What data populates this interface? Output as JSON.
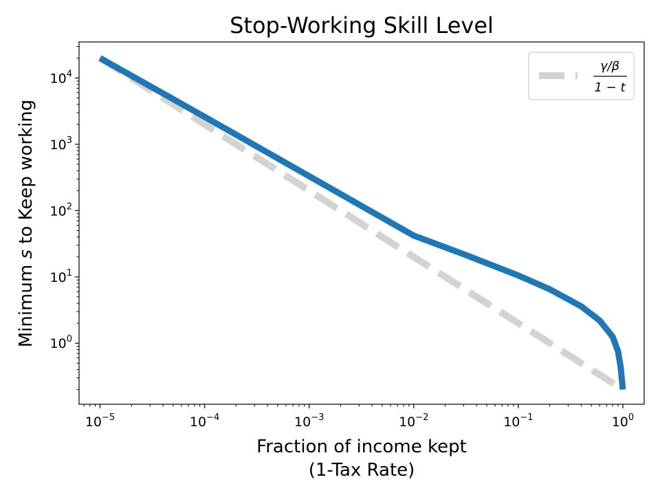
{
  "chart_data": {
    "type": "line",
    "title": "Stop-Working Skill Level",
    "xlabel_line1": "Fraction of income kept",
    "xlabel_line2": "(1-Tax Rate)",
    "ylabel_prefix": "Minimum ",
    "ylabel_var": "s",
    "ylabel_suffix": " to Keep working",
    "xscale": "log",
    "yscale": "log",
    "xlim": [
      6.3e-06,
      1.6
    ],
    "ylim": [
      0.12,
      35000
    ],
    "grid": false,
    "legend_placement": "top-right",
    "x_ticks": [
      {
        "value": 1e-05,
        "base": "10",
        "exp": "−5"
      },
      {
        "value": 0.0001,
        "base": "10",
        "exp": "−4"
      },
      {
        "value": 0.001,
        "base": "10",
        "exp": "−3"
      },
      {
        "value": 0.01,
        "base": "10",
        "exp": "−2"
      },
      {
        "value": 0.1,
        "base": "10",
        "exp": "−1"
      },
      {
        "value": 1,
        "base": "10",
        "exp": "0"
      }
    ],
    "y_ticks": [
      {
        "value": 1,
        "base": "10",
        "exp": "0"
      },
      {
        "value": 10,
        "base": "10",
        "exp": "1"
      },
      {
        "value": 100,
        "base": "10",
        "exp": "2"
      },
      {
        "value": 1000,
        "base": "10",
        "exp": "3"
      },
      {
        "value": 10000,
        "base": "10",
        "exp": "4"
      }
    ],
    "series": [
      {
        "name": "",
        "color": "#1f77b4",
        "style": "solid",
        "x": [
          1e-05,
          0.0001,
          0.001,
          0.01,
          0.03,
          0.1,
          0.2,
          0.4,
          0.6,
          0.8,
          0.9,
          0.95,
          1.0
        ],
        "y": [
          20000,
          2600,
          330,
          42,
          22,
          10.5,
          6.5,
          3.6,
          2.2,
          1.25,
          0.75,
          0.45,
          0.2
        ]
      },
      {
        "name": "γ/β over 1−t",
        "color": "#d3d3d3",
        "style": "dashed",
        "x": [
          1e-05,
          1.0
        ],
        "y": [
          20000,
          0.2
        ]
      }
    ],
    "legend": {
      "numerator": "γ/β",
      "denominator": "1 − t"
    }
  }
}
